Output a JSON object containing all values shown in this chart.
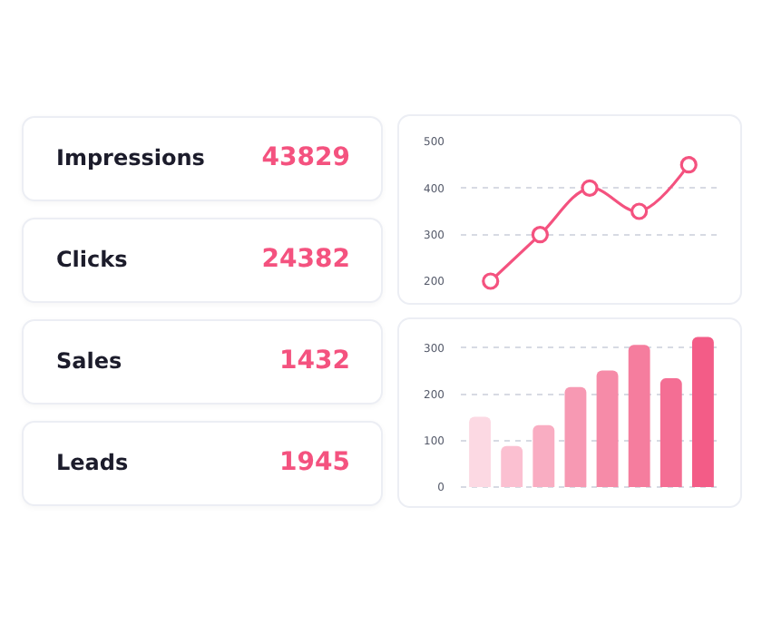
{
  "chart_data": [
    {
      "type": "other",
      "categories": [
        "Impressions",
        "Clicks",
        "Sales",
        "Leads"
      ],
      "values": [
        43829,
        24382,
        1432,
        1945
      ],
      "data_labels": true
    },
    {
      "type": "line",
      "categories": [
        null,
        null,
        null,
        null,
        null
      ],
      "series": [
        {
          "color": "#f4527f",
          "values": [
            200,
            300,
            400,
            350,
            450
          ]
        }
      ],
      "ylim": [
        200,
        500
      ],
      "yticks": [
        200,
        300,
        400,
        500
      ],
      "grid": "y",
      "marker": "circle",
      "line_style": "solid",
      "tick_labels": "y"
    },
    {
      "type": "bar",
      "categories": [
        null,
        null,
        null,
        null,
        null,
        null,
        null,
        null
      ],
      "values": [
        151,
        88,
        133,
        215,
        251,
        306,
        234,
        323
      ],
      "colors": [
        "#fcd9e3",
        "#fbc0d1",
        "#f9adc2",
        "#f799b3",
        "#f68ba8",
        "#f57d9e",
        "#f46e94",
        "#f35c87"
      ],
      "ylim": [
        -10,
        330
      ],
      "yticks": [
        0,
        100,
        200,
        300
      ],
      "grid": "y",
      "tick_labels": "y"
    }
  ]
}
